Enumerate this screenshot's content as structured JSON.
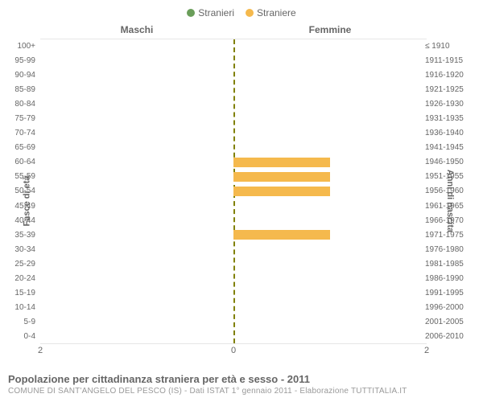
{
  "legend": {
    "items": [
      {
        "label": "Stranieri",
        "color": "#6a9e5a"
      },
      {
        "label": "Straniere",
        "color": "#f5b94d"
      }
    ]
  },
  "sections": {
    "left": "Maschi",
    "right": "Femmine"
  },
  "axis_titles": {
    "left": "Fasce di età",
    "right": "Anni di nascita"
  },
  "chart": {
    "type": "population-pyramid",
    "x_max": 2,
    "x_ticks_left": [
      "2",
      "0"
    ],
    "x_ticks_right": [
      "0",
      "2"
    ],
    "background_color": "#ffffff",
    "grid_color": "#e6e6e6",
    "center_line_color": "#808000",
    "bar_height_ratio": 0.7,
    "series_colors": {
      "male": "#6a9e5a",
      "female": "#f5b94d"
    },
    "rows": [
      {
        "age": "100+",
        "birth": "≤ 1910",
        "male": 0,
        "female": 0
      },
      {
        "age": "95-99",
        "birth": "1911-1915",
        "male": 0,
        "female": 0
      },
      {
        "age": "90-94",
        "birth": "1916-1920",
        "male": 0,
        "female": 0
      },
      {
        "age": "85-89",
        "birth": "1921-1925",
        "male": 0,
        "female": 0
      },
      {
        "age": "80-84",
        "birth": "1926-1930",
        "male": 0,
        "female": 0
      },
      {
        "age": "75-79",
        "birth": "1931-1935",
        "male": 0,
        "female": 0
      },
      {
        "age": "70-74",
        "birth": "1936-1940",
        "male": 0,
        "female": 0
      },
      {
        "age": "65-69",
        "birth": "1941-1945",
        "male": 0,
        "female": 0
      },
      {
        "age": "60-64",
        "birth": "1946-1950",
        "male": 0,
        "female": 1
      },
      {
        "age": "55-59",
        "birth": "1951-1955",
        "male": 0,
        "female": 1
      },
      {
        "age": "50-54",
        "birth": "1956-1960",
        "male": 0,
        "female": 1
      },
      {
        "age": "45-49",
        "birth": "1961-1965",
        "male": 0,
        "female": 0
      },
      {
        "age": "40-44",
        "birth": "1966-1970",
        "male": 0,
        "female": 0
      },
      {
        "age": "35-39",
        "birth": "1971-1975",
        "male": 0,
        "female": 1
      },
      {
        "age": "30-34",
        "birth": "1976-1980",
        "male": 0,
        "female": 0
      },
      {
        "age": "25-29",
        "birth": "1981-1985",
        "male": 0,
        "female": 0
      },
      {
        "age": "20-24",
        "birth": "1986-1990",
        "male": 0,
        "female": 0
      },
      {
        "age": "15-19",
        "birth": "1991-1995",
        "male": 0,
        "female": 0
      },
      {
        "age": "10-14",
        "birth": "1996-2000",
        "male": 0,
        "female": 0
      },
      {
        "age": "5-9",
        "birth": "2001-2005",
        "male": 0,
        "female": 0
      },
      {
        "age": "0-4",
        "birth": "2006-2010",
        "male": 0,
        "female": 0
      }
    ]
  },
  "footer": {
    "title": "Popolazione per cittadinanza straniera per età e sesso - 2011",
    "subtitle": "COMUNE DI SANT'ANGELO DEL PESCO (IS) - Dati ISTAT 1° gennaio 2011 - Elaborazione TUTTITALIA.IT"
  }
}
